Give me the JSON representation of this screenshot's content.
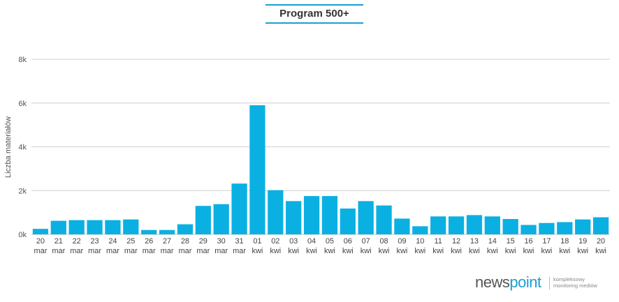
{
  "chart_data": {
    "type": "bar",
    "title": "Program 500+",
    "ylabel": "Liczba materiałów",
    "xlabel": "",
    "ylim": [
      0,
      8000
    ],
    "yticks": [
      0,
      2000,
      4000,
      6000,
      8000
    ],
    "ytick_labels": [
      "0k",
      "2k",
      "4k",
      "6k",
      "8k"
    ],
    "grid": true,
    "bar_color": "#0bb0e2",
    "categories": [
      [
        "20",
        "mar"
      ],
      [
        "21",
        "mar"
      ],
      [
        "22",
        "mar"
      ],
      [
        "23",
        "mar"
      ],
      [
        "24",
        "mar"
      ],
      [
        "25",
        "mar"
      ],
      [
        "26",
        "mar"
      ],
      [
        "27",
        "mar"
      ],
      [
        "28",
        "mar"
      ],
      [
        "29",
        "mar"
      ],
      [
        "30",
        "mar"
      ],
      [
        "31",
        "mar"
      ],
      [
        "01",
        "kwi"
      ],
      [
        "02",
        "kwi"
      ],
      [
        "03",
        "kwi"
      ],
      [
        "04",
        "kwi"
      ],
      [
        "05",
        "kwi"
      ],
      [
        "06",
        "kwi"
      ],
      [
        "07",
        "kwi"
      ],
      [
        "08",
        "kwi"
      ],
      [
        "09",
        "kwi"
      ],
      [
        "10",
        "kwi"
      ],
      [
        "11",
        "kwi"
      ],
      [
        "12",
        "kwi"
      ],
      [
        "13",
        "kwi"
      ],
      [
        "14",
        "kwi"
      ],
      [
        "15",
        "kwi"
      ],
      [
        "16",
        "kwi"
      ],
      [
        "17",
        "kwi"
      ],
      [
        "18",
        "kwi"
      ],
      [
        "19",
        "kwi"
      ],
      [
        "20",
        "kwi"
      ]
    ],
    "values": [
      250,
      620,
      650,
      650,
      650,
      680,
      200,
      200,
      460,
      1300,
      1380,
      2320,
      5900,
      2020,
      1520,
      1750,
      1750,
      1180,
      1520,
      1320,
      720,
      370,
      820,
      820,
      880,
      820,
      700,
      430,
      520,
      560,
      680,
      780
    ]
  },
  "logo": {
    "news": "news",
    "point": "point",
    "tagline_1": "kompleksowy",
    "tagline_2": "monitoring mediów"
  }
}
